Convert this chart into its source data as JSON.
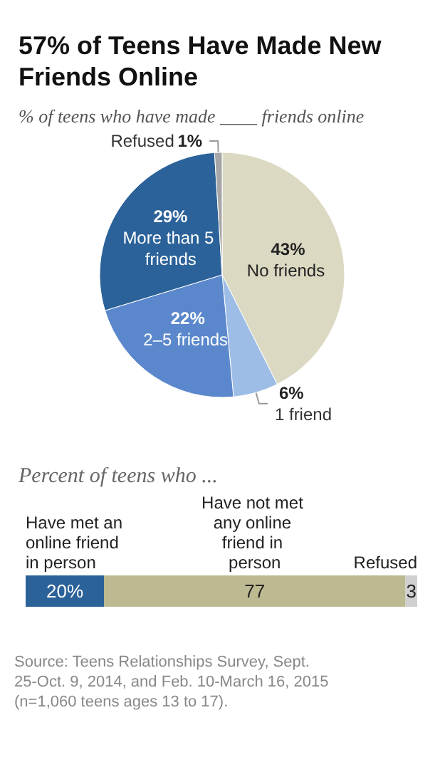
{
  "chart_data": [
    {
      "type": "pie",
      "title": "57% of Teens Have Made New Friends Online",
      "subtitle": "% of teens who have made ____ friends online",
      "categories": [
        "No friends",
        "1 friend",
        "2–5 friends",
        "More than 5 friends",
        "Refused"
      ],
      "values": [
        43,
        6,
        22,
        29,
        1
      ],
      "colors": [
        "#dcd9c3",
        "#9dbde6",
        "#5b88cc",
        "#2b6299",
        "#a6a6a6"
      ],
      "value_labels": [
        "43%",
        "6%",
        "22%",
        "29%",
        "1%"
      ],
      "legend": false
    },
    {
      "type": "bar",
      "orientation": "horizontal",
      "stacked": true,
      "subtitle": "Percent of teens who ...",
      "categories": [
        null
      ],
      "series": [
        {
          "name": "Have met an online friend in person",
          "color": "#2b6299",
          "values": [
            20
          ],
          "value_labels": [
            "20%"
          ]
        },
        {
          "name": "Have not met any online friend in person",
          "color": "#bdb991",
          "values": [
            77
          ],
          "value_labels": [
            "77"
          ]
        },
        {
          "name": "Refused",
          "color": "#d0d0d0",
          "values": [
            3
          ],
          "value_labels": [
            "3"
          ]
        }
      ],
      "xlim": [
        0,
        100
      ],
      "legend": false,
      "annotations": [
        "Source: Teens Relationships Survey, Sept. 25-Oct. 9, 2014, and Feb. 10-March 16, 2015 (n=1,060 teens ages 13 to 17)."
      ]
    }
  ]
}
